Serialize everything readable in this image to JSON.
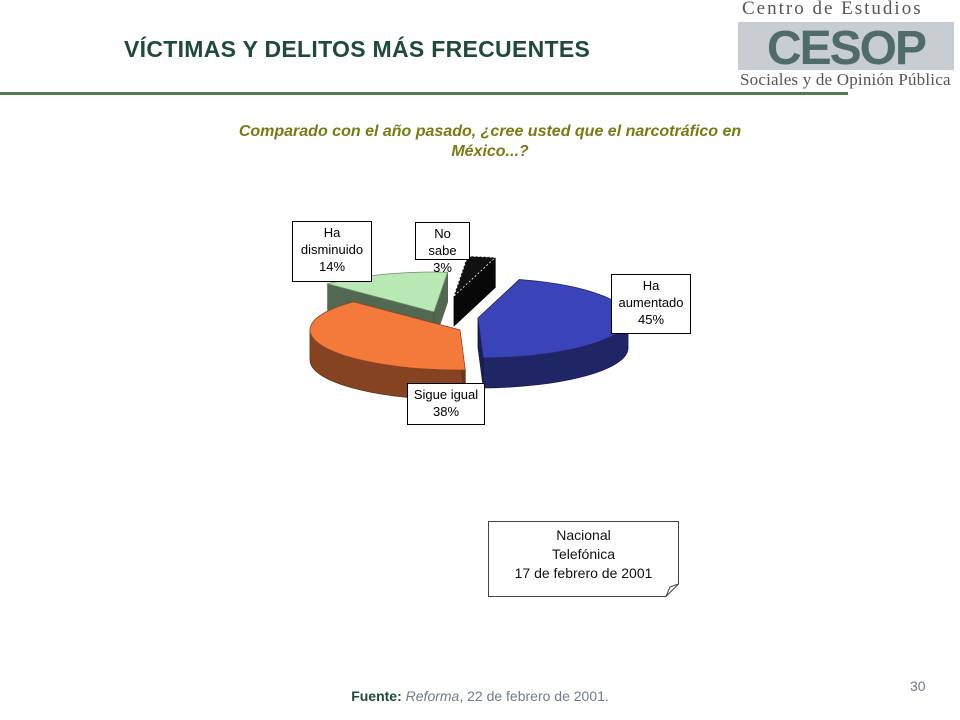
{
  "header": {
    "title": "VÍCTIMAS Y DELITOS MÁS FRECUENTES",
    "logo_top": "Centro de Estudios",
    "logo_letters": "CESOP",
    "logo_bottom": "Sociales y de Opinión Pública"
  },
  "chart_data": {
    "type": "pie",
    "title": "Comparado con el año pasado, ¿cree usted que el narcotráfico en México...?",
    "slices": [
      {
        "label": "Ha aumentado",
        "value": 45,
        "color": "#3a44b8"
      },
      {
        "label": "Sigue igual",
        "value": 38,
        "color": "#f47a3c"
      },
      {
        "label": "Ha disminuido",
        "value": 14,
        "color": "#b9e8b4"
      },
      {
        "label": "No sabe",
        "value": 3,
        "color": "#111111"
      }
    ]
  },
  "callouts": {
    "aumentado": {
      "line1": "Ha",
      "line2": "aumentado",
      "pct": "45%"
    },
    "igual": {
      "line1": "Sigue igual",
      "pct": "38%"
    },
    "disminuido": {
      "line1": "Ha",
      "line2": "disminuido",
      "pct": "14%"
    },
    "nosabe": {
      "line1": "No sabe",
      "pct": "3%"
    }
  },
  "note": {
    "line1": "Nacional",
    "line2": "Telefónica",
    "line3": "17 de febrero de 2001"
  },
  "footer": {
    "source_label": "Fuente:",
    "source_pub": "Reforma",
    "source_rest": ", 22 de febrero de 2001.",
    "page_number": "30"
  }
}
